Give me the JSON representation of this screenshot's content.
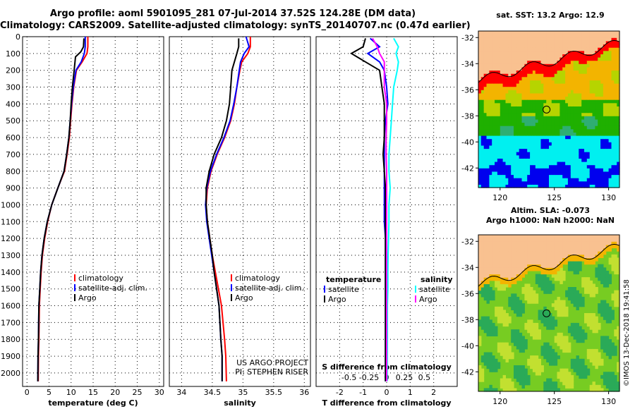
{
  "header": {
    "line1": "Argo profile: aoml 5901095_281 07-Jul-2014 37.52S 124.28E (DM data)",
    "line2": "Climatology: CARS2009. Satellite-adjusted climatology: synTS_20140707.nc (0.47d earlier)"
  },
  "credit": "©IMOS 13-Dec-2018 19:41:58",
  "chart_data": [
    {
      "type": "line",
      "xlabel": "temperature (deg C)",
      "xlim": [
        -1,
        31
      ],
      "xticks": [
        0,
        5,
        10,
        15,
        20,
        25,
        30
      ],
      "ylim": [
        2080,
        0
      ],
      "yticks": [
        0,
        100,
        200,
        300,
        400,
        500,
        600,
        700,
        800,
        900,
        1000,
        1100,
        1200,
        1300,
        1400,
        1500,
        1600,
        1700,
        1800,
        1900,
        2000
      ],
      "legend": "bottom-left",
      "series": [
        {
          "name": "climatology",
          "color": "#ff0000",
          "x": [
            13.8,
            13.8,
            13.6,
            12.5,
            11.2,
            10.6,
            10.2,
            9.9,
            9.6,
            9.1,
            8.5,
            7.0,
            5.6,
            4.7,
            4.0,
            3.5,
            3.2,
            3.0,
            2.8,
            2.7,
            2.6,
            2.55
          ],
          "y": [
            0,
            60,
            100,
            150,
            200,
            300,
            400,
            500,
            600,
            700,
            800,
            900,
            1000,
            1100,
            1200,
            1300,
            1400,
            1500,
            1600,
            1800,
            1900,
            2050
          ]
        },
        {
          "name": "satellite-adj. clim.",
          "color": "#0000ff",
          "x": [
            13.2,
            13.2,
            13.0,
            12.3,
            11.1,
            10.5,
            10.1,
            9.8,
            9.5,
            9.0,
            8.4,
            7.0,
            5.6,
            4.6,
            3.9,
            3.4,
            3.1,
            2.9,
            2.7,
            2.6,
            2.5,
            2.45
          ],
          "y": [
            0,
            60,
            100,
            150,
            200,
            300,
            400,
            500,
            600,
            700,
            800,
            900,
            1000,
            1100,
            1200,
            1300,
            1400,
            1500,
            1600,
            1800,
            1900,
            2050
          ]
        },
        {
          "name": "Argo",
          "color": "#000000",
          "x": [
            12.9,
            12.8,
            12.2,
            11.0,
            10.7,
            10.3,
            10.0,
            9.8,
            9.5,
            9.0,
            8.4,
            7.0,
            5.6,
            4.6,
            3.9,
            3.4,
            3.1,
            2.9,
            2.7,
            2.6,
            2.5,
            2.45
          ],
          "y": [
            10,
            60,
            90,
            120,
            200,
            300,
            400,
            500,
            600,
            700,
            800,
            900,
            1000,
            1100,
            1200,
            1300,
            1400,
            1500,
            1600,
            1800,
            1900,
            2050
          ]
        }
      ]
    },
    {
      "type": "line",
      "xlabel": "salinity",
      "xlim": [
        33.8,
        36.1
      ],
      "xticks": [
        34,
        34.5,
        35,
        35.5,
        36
      ],
      "ylim": [
        2080,
        0
      ],
      "legend": "bottom-left",
      "note": "US ARGO PROJECT\nPI: STEPHEN RISER",
      "series": [
        {
          "name": "climatology",
          "color": "#ff0000",
          "x": [
            35.12,
            35.12,
            35.08,
            34.98,
            34.95,
            34.9,
            34.86,
            34.8,
            34.7,
            34.58,
            34.48,
            34.42,
            34.4,
            34.42,
            34.46,
            34.5,
            34.55,
            34.6,
            34.65,
            34.7,
            34.72,
            34.73
          ],
          "y": [
            0,
            60,
            100,
            150,
            200,
            300,
            400,
            500,
            600,
            700,
            800,
            900,
            1000,
            1100,
            1200,
            1300,
            1400,
            1500,
            1600,
            1800,
            1900,
            2050
          ]
        },
        {
          "name": "satellite-adj. clim.",
          "color": "#0000ff",
          "x": [
            35.05,
            35.1,
            35.02,
            34.96,
            34.94,
            34.9,
            34.85,
            34.79,
            34.69,
            34.57,
            34.47,
            34.41,
            34.39,
            34.41,
            34.45,
            34.49,
            34.53,
            34.57,
            34.61,
            34.64,
            34.66,
            34.66
          ],
          "y": [
            0,
            60,
            100,
            150,
            200,
            300,
            400,
            500,
            600,
            700,
            800,
            900,
            1000,
            1100,
            1200,
            1300,
            1400,
            1500,
            1600,
            1800,
            1900,
            2050
          ]
        },
        {
          "name": "Argo",
          "color": "#000000",
          "x": [
            34.93,
            34.93,
            34.9,
            34.86,
            34.82,
            34.8,
            34.78,
            34.73,
            34.65,
            34.53,
            34.45,
            34.4,
            34.4,
            34.42,
            34.46,
            34.5,
            34.53,
            34.57,
            34.61,
            34.64,
            34.66,
            34.66
          ],
          "y": [
            10,
            60,
            100,
            150,
            200,
            300,
            400,
            500,
            600,
            700,
            800,
            900,
            1000,
            1100,
            1200,
            1300,
            1400,
            1500,
            1600,
            1800,
            1900,
            2050
          ]
        }
      ]
    },
    {
      "type": "line",
      "xlabel": "T difference from climatology",
      "xlabel_top": "S difference from climatology",
      "xlim": [
        -3,
        3
      ],
      "xticks": [
        -2,
        -1,
        0,
        1,
        2
      ],
      "xticks_S_labels": [
        "-0.5",
        "-0.25",
        "0",
        "0.25",
        "0.5"
      ],
      "ylim": [
        2080,
        0
      ],
      "legend_groups": [
        "temperature",
        "salinity"
      ],
      "series": [
        {
          "name": "satellite",
          "group": "temperature",
          "color": "#0000ff",
          "x": [
            -0.7,
            -0.3,
            -0.8,
            -0.3,
            -0.1,
            0.0,
            0.05,
            -0.05,
            -0.1,
            -0.1,
            -0.1,
            -0.1,
            -0.1,
            -0.1,
            -0.05,
            -0.05,
            -0.05,
            -0.05,
            -0.05,
            -0.05,
            -0.05
          ],
          "y": [
            10,
            60,
            100,
            150,
            200,
            300,
            400,
            500,
            600,
            700,
            800,
            900,
            1000,
            1100,
            1200,
            1300,
            1400,
            1500,
            1600,
            1800,
            2050
          ]
        },
        {
          "name": "Argo",
          "group": "temperature",
          "color": "#000000",
          "x": [
            -0.9,
            -1.0,
            -1.5,
            -0.9,
            -0.3,
            -0.2,
            -0.1,
            -0.1,
            -0.1,
            -0.15,
            -0.1,
            -0.05,
            -0.05,
            -0.05,
            -0.05,
            -0.05,
            -0.05,
            -0.05,
            -0.05,
            -0.05,
            -0.05
          ],
          "y": [
            10,
            60,
            100,
            150,
            200,
            300,
            400,
            500,
            600,
            700,
            800,
            900,
            1000,
            1100,
            1200,
            1300,
            1400,
            1500,
            1600,
            1800,
            2050
          ]
        },
        {
          "name": "satellite",
          "group": "salinity",
          "color": "#00ffff",
          "x": [
            0.3,
            0.5,
            0.4,
            0.5,
            0.45,
            0.3,
            0.25,
            0.2,
            0.15,
            0.1,
            0.1,
            0.15,
            0.1,
            0.1,
            0.08,
            0.06,
            0.05,
            0.05,
            0.03,
            0.03,
            0.02
          ],
          "y": [
            10,
            60,
            100,
            150,
            200,
            300,
            400,
            500,
            600,
            700,
            800,
            900,
            1000,
            1100,
            1200,
            1300,
            1400,
            1500,
            1600,
            1800,
            2050
          ]
        },
        {
          "name": "Argo",
          "group": "salinity",
          "color": "#ff00ff",
          "x": [
            -0.6,
            -0.4,
            -0.3,
            -0.1,
            -0.1,
            -0.1,
            0.0,
            0.0,
            -0.02,
            -0.02,
            0.0,
            0.0,
            0.0,
            0.0,
            0.0,
            0.0,
            0.0,
            0.0,
            0.0,
            0.0,
            0.0
          ],
          "y": [
            10,
            60,
            100,
            150,
            200,
            300,
            400,
            500,
            600,
            700,
            800,
            900,
            1000,
            1100,
            1200,
            1300,
            1400,
            1500,
            1600,
            1800,
            2050
          ]
        }
      ]
    },
    {
      "type": "heatmap",
      "title": "sat. SST: 13.2 Argo: 12.9",
      "xlim": [
        118,
        131
      ],
      "xticks": [
        120,
        125,
        130
      ],
      "ylim": [
        -43.5,
        -31.5
      ],
      "yticks": [
        -32,
        -34,
        -36,
        -38,
        -40,
        -42
      ],
      "marker": {
        "lon": 124.28,
        "lat": -37.52
      },
      "colors": {
        "land": "#f9c190",
        "warm": "#ff0000",
        "orange": "#f3b400",
        "yellow_green": "#b6d400",
        "green": "#1fb000",
        "teal": "#2fae72",
        "cyan": "#00f0f0",
        "blue": "#0000ee"
      }
    },
    {
      "type": "heatmap",
      "title": "Altim. SLA: -0.073",
      "subtitle": "Argo h1000: NaN h2000: NaN",
      "xlim": [
        118,
        131
      ],
      "xticks": [
        120,
        125,
        130
      ],
      "ylim": [
        -43.5,
        -31.5
      ],
      "yticks": [
        -32,
        -34,
        -36,
        -38,
        -40,
        -42
      ],
      "marker": {
        "lon": 124.28,
        "lat": -37.52
      },
      "colors": {
        "land": "#f9c190",
        "coast": "#f3b400",
        "field": "#77cc22",
        "dark": "#2aaa58",
        "light": "#c2e030"
      }
    }
  ]
}
